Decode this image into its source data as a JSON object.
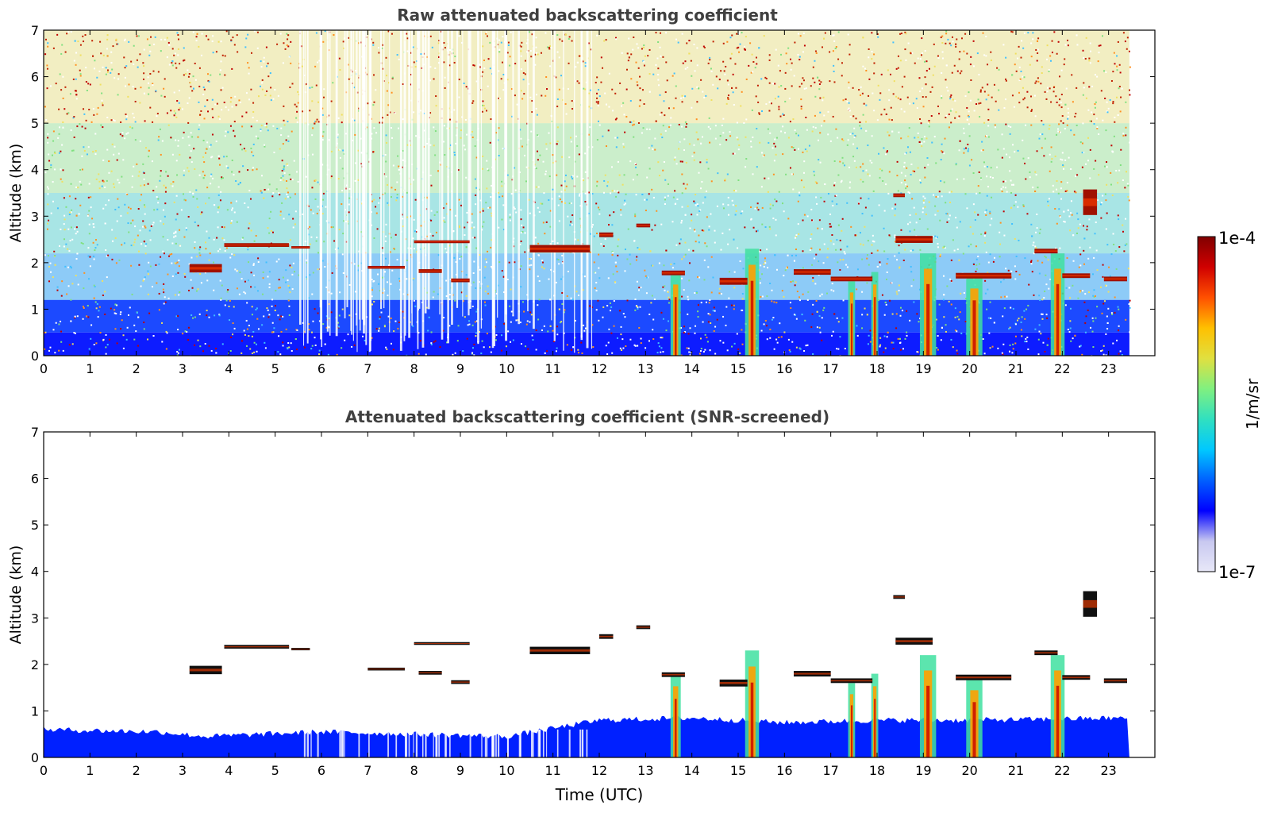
{
  "chart_data": [
    {
      "type": "heatmap",
      "title": "Raw attenuated backscattering coefficient",
      "xlabel": "",
      "ylabel": "Altitude (km)",
      "xlim": [
        0,
        24
      ],
      "ylim": [
        0,
        7
      ],
      "x_ticks": [
        "0",
        "1",
        "2",
        "3",
        "4",
        "5",
        "6",
        "7",
        "8",
        "9",
        "10",
        "11",
        "12",
        "13",
        "14",
        "15",
        "16",
        "17",
        "18",
        "19",
        "20",
        "21",
        "22",
        "23"
      ],
      "y_ticks": [
        "0",
        "1",
        "2",
        "3",
        "4",
        "5",
        "6",
        "7"
      ],
      "data_end_hour": 23.45,
      "noise_background": true,
      "cloud_layers": [
        {
          "t0": 3.15,
          "t1": 3.85,
          "alt": 1.88,
          "thick": 0.18
        },
        {
          "t0": 3.9,
          "t1": 5.3,
          "alt": 2.38,
          "thick": 0.08
        },
        {
          "t0": 5.35,
          "t1": 5.75,
          "alt": 2.33,
          "thick": 0.05
        },
        {
          "t0": 7.0,
          "t1": 7.8,
          "alt": 1.9,
          "thick": 0.06
        },
        {
          "t0": 8.0,
          "t1": 9.2,
          "alt": 2.45,
          "thick": 0.06
        },
        {
          "t0": 8.1,
          "t1": 8.6,
          "alt": 1.82,
          "thick": 0.08
        },
        {
          "t0": 8.8,
          "t1": 9.2,
          "alt": 1.62,
          "thick": 0.08
        },
        {
          "t0": 10.5,
          "t1": 11.8,
          "alt": 2.3,
          "thick": 0.16
        },
        {
          "t0": 12.0,
          "t1": 12.3,
          "alt": 2.6,
          "thick": 0.1
        },
        {
          "t0": 12.8,
          "t1": 13.1,
          "alt": 2.8,
          "thick": 0.08
        },
        {
          "t0": 13.35,
          "t1": 13.85,
          "alt": 1.78,
          "thick": 0.1
        },
        {
          "t0": 14.6,
          "t1": 15.2,
          "alt": 1.6,
          "thick": 0.15
        },
        {
          "t0": 16.2,
          "t1": 17.0,
          "alt": 1.8,
          "thick": 0.12
        },
        {
          "t0": 17.0,
          "t1": 17.9,
          "alt": 1.65,
          "thick": 0.1
        },
        {
          "t0": 18.4,
          "t1": 19.2,
          "alt": 2.5,
          "thick": 0.15
        },
        {
          "t0": 18.35,
          "t1": 18.6,
          "alt": 3.45,
          "thick": 0.08
        },
        {
          "t0": 19.7,
          "t1": 20.9,
          "alt": 1.72,
          "thick": 0.12
        },
        {
          "t0": 21.4,
          "t1": 21.9,
          "alt": 2.25,
          "thick": 0.1
        },
        {
          "t0": 22.0,
          "t1": 22.6,
          "alt": 1.72,
          "thick": 0.1
        },
        {
          "t0": 22.9,
          "t1": 23.4,
          "alt": 1.65,
          "thick": 0.1
        },
        {
          "t0": 22.45,
          "t1": 22.75,
          "alt": 3.3,
          "thick": 0.55
        }
      ],
      "precip_shafts": [
        {
          "t": 13.65,
          "top": 1.8,
          "width": 0.22
        },
        {
          "t": 15.3,
          "top": 2.3,
          "width": 0.3
        },
        {
          "t": 17.45,
          "top": 1.6,
          "width": 0.15
        },
        {
          "t": 17.95,
          "top": 1.8,
          "width": 0.15
        },
        {
          "t": 19.1,
          "top": 2.2,
          "width": 0.35
        },
        {
          "t": 20.1,
          "top": 1.7,
          "width": 0.35
        },
        {
          "t": 21.9,
          "top": 2.2,
          "width": 0.3
        }
      ]
    },
    {
      "type": "heatmap",
      "title": "Attenuated backscattering coefficient (SNR-screened)",
      "xlabel": "Time (UTC)",
      "ylabel": "Altitude (km)",
      "xlim": [
        0,
        24
      ],
      "ylim": [
        0,
        7
      ],
      "x_ticks": [
        "0",
        "1",
        "2",
        "3",
        "4",
        "5",
        "6",
        "7",
        "8",
        "9",
        "10",
        "11",
        "12",
        "13",
        "14",
        "15",
        "16",
        "17",
        "18",
        "19",
        "20",
        "21",
        "22",
        "23"
      ],
      "y_ticks": [
        "0",
        "1",
        "2",
        "3",
        "4",
        "5",
        "6",
        "7"
      ],
      "data_end_hour": 23.45,
      "noise_background": false,
      "boundary_layer_top_km": [
        [
          0,
          0.6
        ],
        [
          2.5,
          0.55
        ],
        [
          3.5,
          0.45
        ],
        [
          6,
          0.55
        ],
        [
          8,
          0.5
        ],
        [
          10,
          0.45
        ],
        [
          12,
          0.8
        ],
        [
          14,
          0.85
        ],
        [
          16,
          0.75
        ],
        [
          18,
          0.8
        ],
        [
          20,
          0.8
        ],
        [
          23.45,
          0.85
        ]
      ]
    }
  ],
  "colorbar": {
    "label": "1/m/sr",
    "max_label": "1e-4",
    "min_label": "1e-7",
    "scale": "log",
    "colormap": [
      "#e8e8f8",
      "#c8c8f0",
      "#0000ff",
      "#0060ff",
      "#00c8ff",
      "#30e0c0",
      "#80f080",
      "#e0e040",
      "#ffc000",
      "#ff5000",
      "#d00000",
      "#800000"
    ]
  }
}
